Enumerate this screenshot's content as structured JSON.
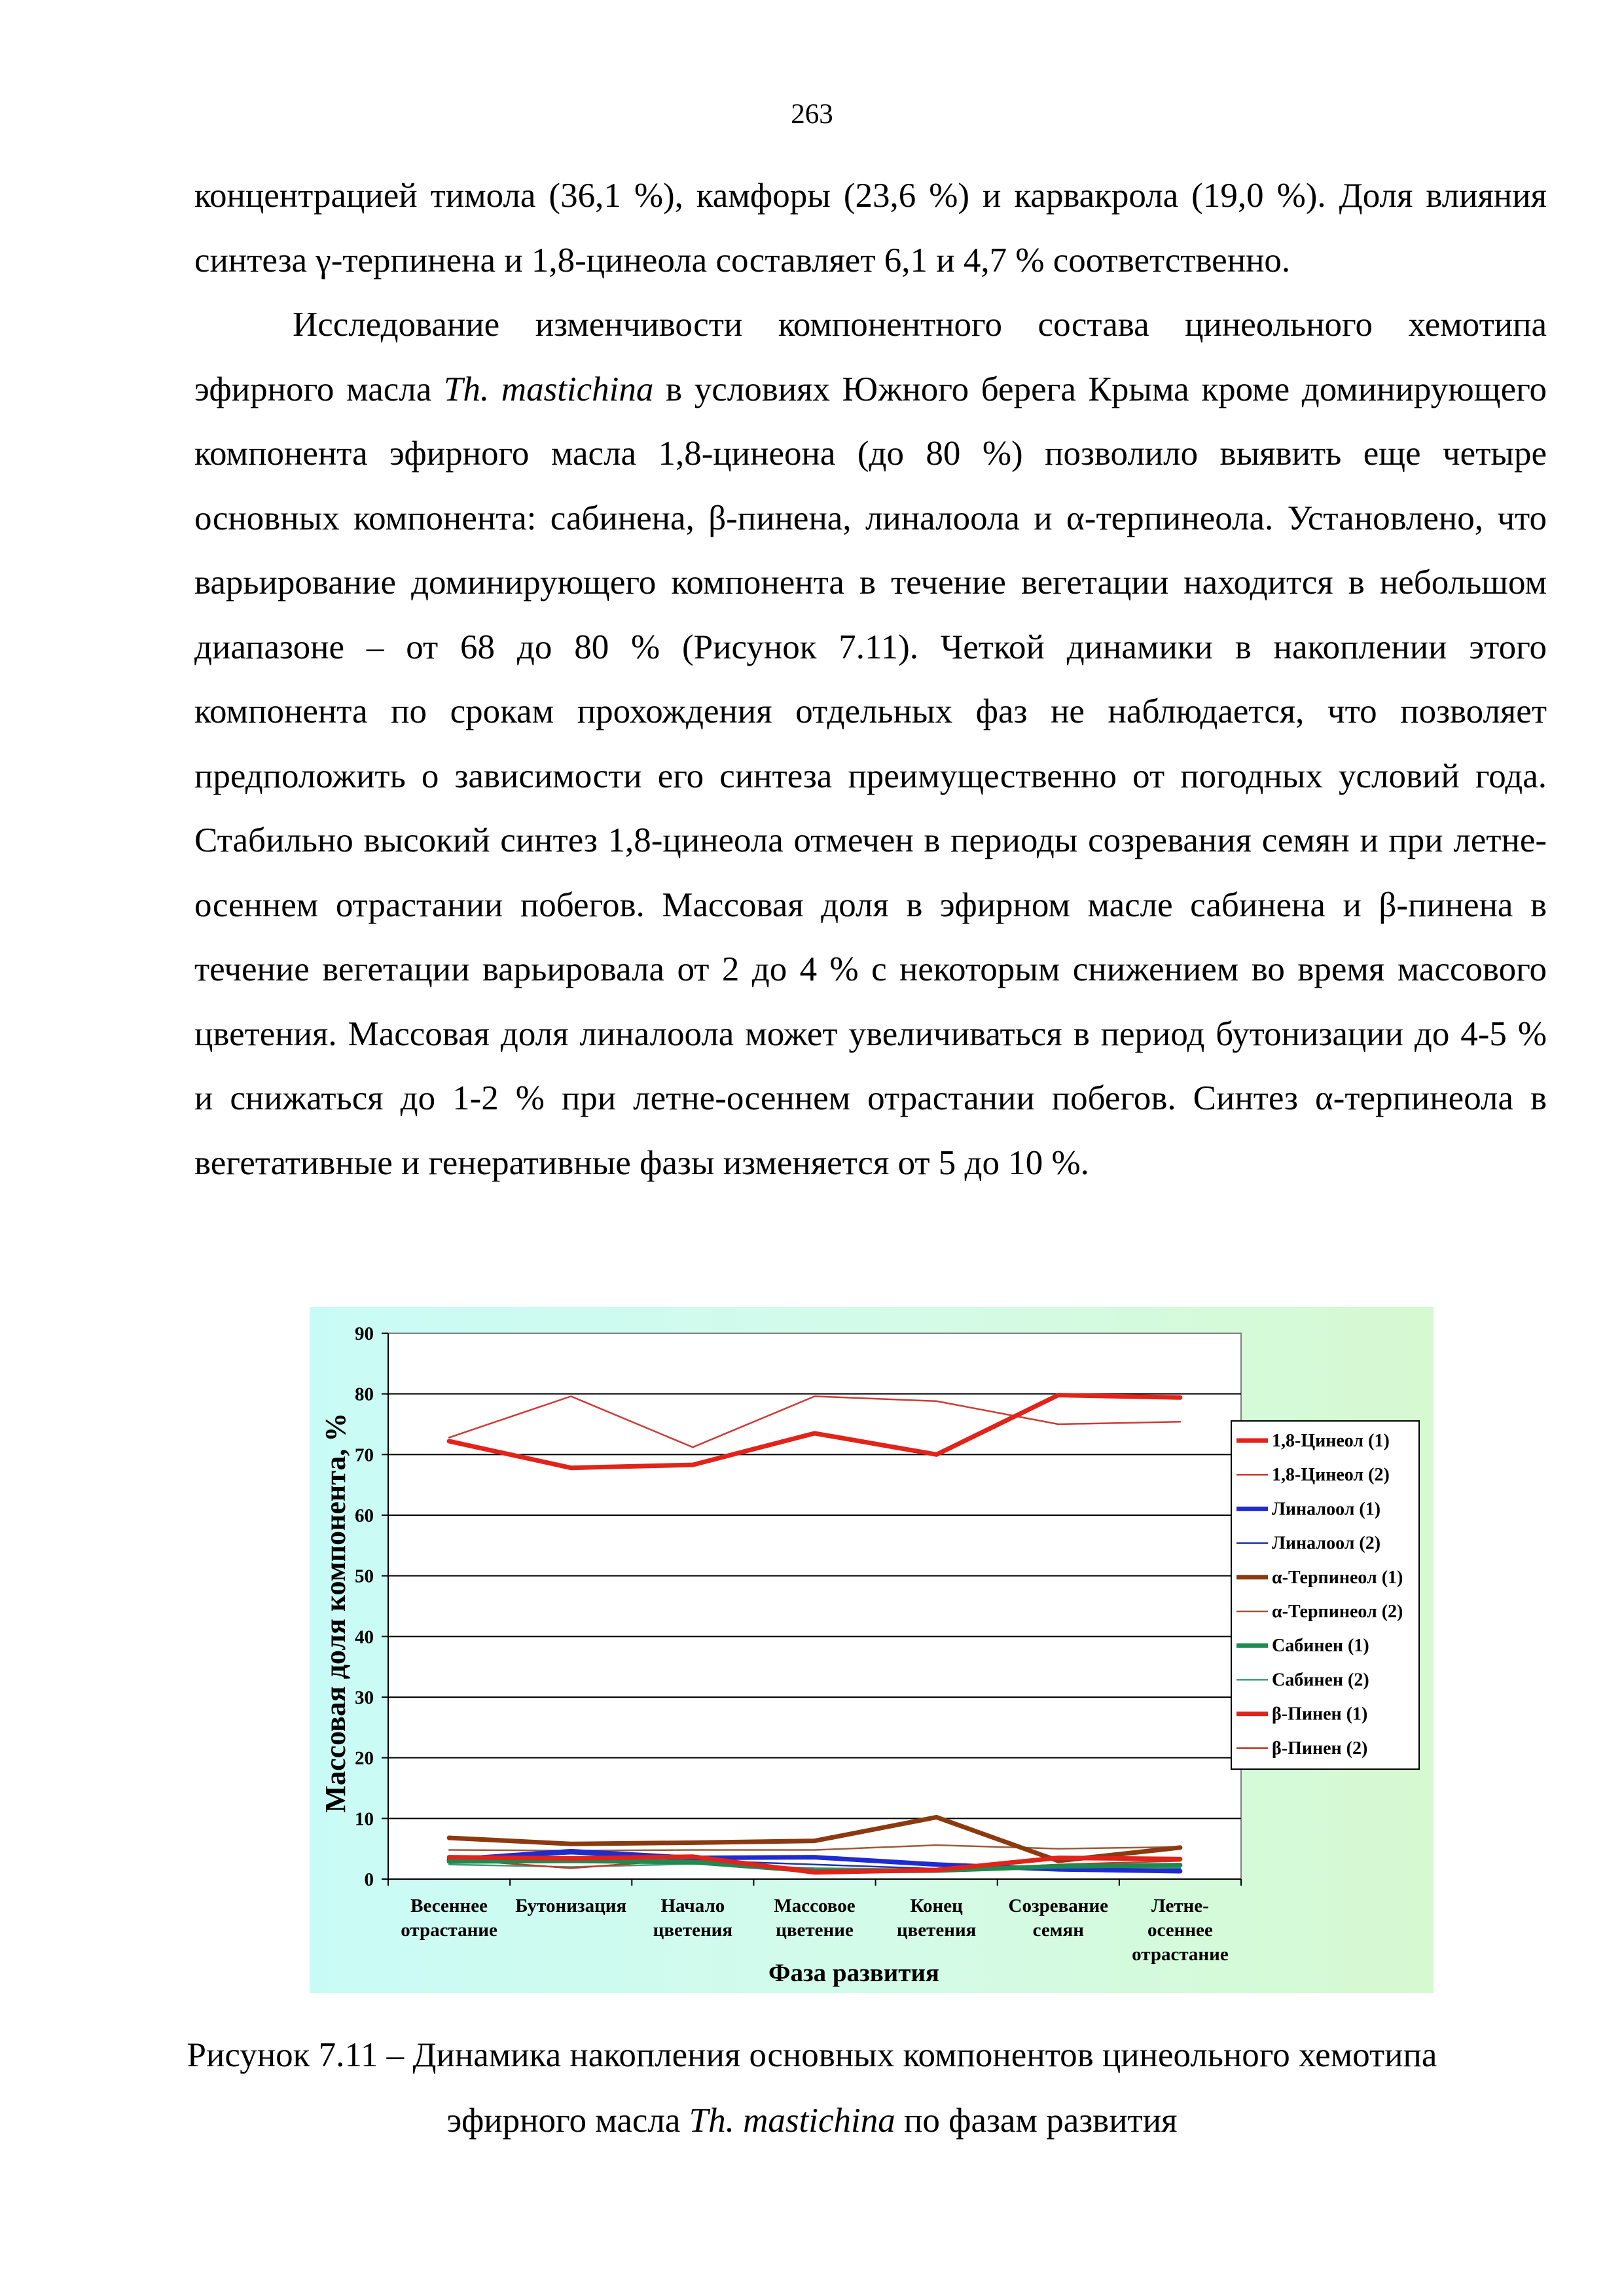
{
  "page_number": "263",
  "paragraphs": [
    {
      "indent": false,
      "segments": [
        {
          "t": "концентрацией тимола (36,1 %), камфоры (23,6 %) и карвакрола (19,0 %). Доля влияния синтеза γ-терпинена и 1,8-цинеола составляет 6,1 и 4,7 % соответственно."
        }
      ]
    },
    {
      "indent": true,
      "segments": [
        {
          "t": "Исследование изменчивости компонентного состава цинеольного хемотипа эфирного масла "
        },
        {
          "t": "Th. mastichina",
          "i": true
        },
        {
          "t": " в условиях Южного берега Крыма кроме доминирующего компонента эфирного масла 1,8-цинеона (до 80 %) позволило выявить еще четыре основных компонента: сабинена, β-пинена, линалоола и α-терпинеола. Установлено, что варьирование доминирующего компонента в течение вегетации находится в небольшом диапазоне – от 68 до 80 % (Рисунок 7.11). Четкой динамики в накоплении этого компонента по срокам прохождения отдельных фаз не наблюдается, что позволяет предположить о зависимости его синтеза преимущественно от погодных условий года. Стабильно высокий синтез 1,8-цинеола отмечен в периоды созревания семян и при летне-осеннем отрастании побегов. Массовая доля в эфирном масле сабинена и β-пинена в течение вегетации варьировала от 2 до 4 % с некоторым снижением во время массового цветения. Массовая доля линалоола может увеличиваться в период бутонизации до 4-5 % и снижаться до 1-2 % при летне-осеннем отрастании побегов. Синтез α-терпинеола в вегетативные и генеративные фазы изменяется от 5 до 10 %."
        }
      ]
    }
  ],
  "caption": {
    "line1": "Рисунок 7.11 – Динамика накопления основных компонентов цинеольного хемотипа",
    "line2_prefix": "эфирного масла ",
    "line2_italic": "Th. mastichina",
    "line2_suffix": " по фазам развития"
  },
  "chart_data": {
    "type": "line",
    "ylabel": "Массовая доля компонента, %",
    "xlabel": "Фаза развития",
    "ylim": [
      0,
      90
    ],
    "yticks": [
      0,
      10,
      20,
      30,
      40,
      50,
      60,
      70,
      80,
      90
    ],
    "grid": true,
    "legend_position": "right",
    "categories": [
      [
        "Весеннее",
        "отрастание"
      ],
      [
        "Бутонизация"
      ],
      [
        "Начало",
        "цветения"
      ],
      [
        "Массовое",
        "цветение"
      ],
      [
        "Конец",
        "цветения"
      ],
      [
        "Созревание",
        "семян"
      ],
      [
        "Летне-",
        "осеннее",
        "отрастание"
      ]
    ],
    "series": [
      {
        "name": "1,8-Цинеол (1)",
        "color": "#e2231a",
        "width": 7,
        "values": [
          72.2,
          67.8,
          68.3,
          73.5,
          70.0,
          79.8,
          79.4
        ]
      },
      {
        "name": "1,8-Цинеол (2)",
        "color": "#cc3b36",
        "width": 2.5,
        "values": [
          72.8,
          79.6,
          71.2,
          79.6,
          78.8,
          75.0,
          75.4
        ]
      },
      {
        "name": "Линалоол (1)",
        "color": "#1f2bd1",
        "width": 7,
        "values": [
          3.2,
          4.6,
          3.5,
          3.6,
          2.4,
          1.6,
          1.3
        ]
      },
      {
        "name": "Линалоол (2)",
        "color": "#2233aa",
        "width": 2.5,
        "values": [
          3.0,
          4.2,
          3.1,
          2.4,
          1.7,
          1.8,
          1.7
        ]
      },
      {
        "name": "α-Терпинеол (1)",
        "color": "#8b3a10",
        "width": 7,
        "values": [
          6.8,
          5.8,
          6.0,
          6.3,
          10.2,
          3.0,
          5.2
        ]
      },
      {
        "name": "α-Терпинеол (2)",
        "color": "#9b5a3a",
        "width": 2.5,
        "values": [
          4.8,
          4.7,
          4.8,
          4.8,
          5.6,
          5.0,
          5.3
        ]
      },
      {
        "name": "Сабинен (1)",
        "color": "#1e8a50",
        "width": 7,
        "values": [
          2.9,
          3.0,
          2.8,
          1.3,
          1.4,
          2.1,
          2.3
        ]
      },
      {
        "name": "Сабинен (2)",
        "color": "#3f9a70",
        "width": 2.5,
        "values": [
          2.4,
          2.0,
          2.5,
          1.8,
          1.6,
          1.7,
          1.9
        ]
      },
      {
        "name": "β-Пинен (1)",
        "color": "#e2231a",
        "width": 7,
        "values": [
          3.6,
          3.4,
          3.7,
          1.1,
          1.5,
          3.5,
          3.3
        ]
      },
      {
        "name": "β-Пинен (2)",
        "color": "#c0392b",
        "width": 2.5,
        "values": [
          3.3,
          1.8,
          3.3,
          1.6,
          1.4,
          2.4,
          3.0
        ]
      }
    ]
  }
}
